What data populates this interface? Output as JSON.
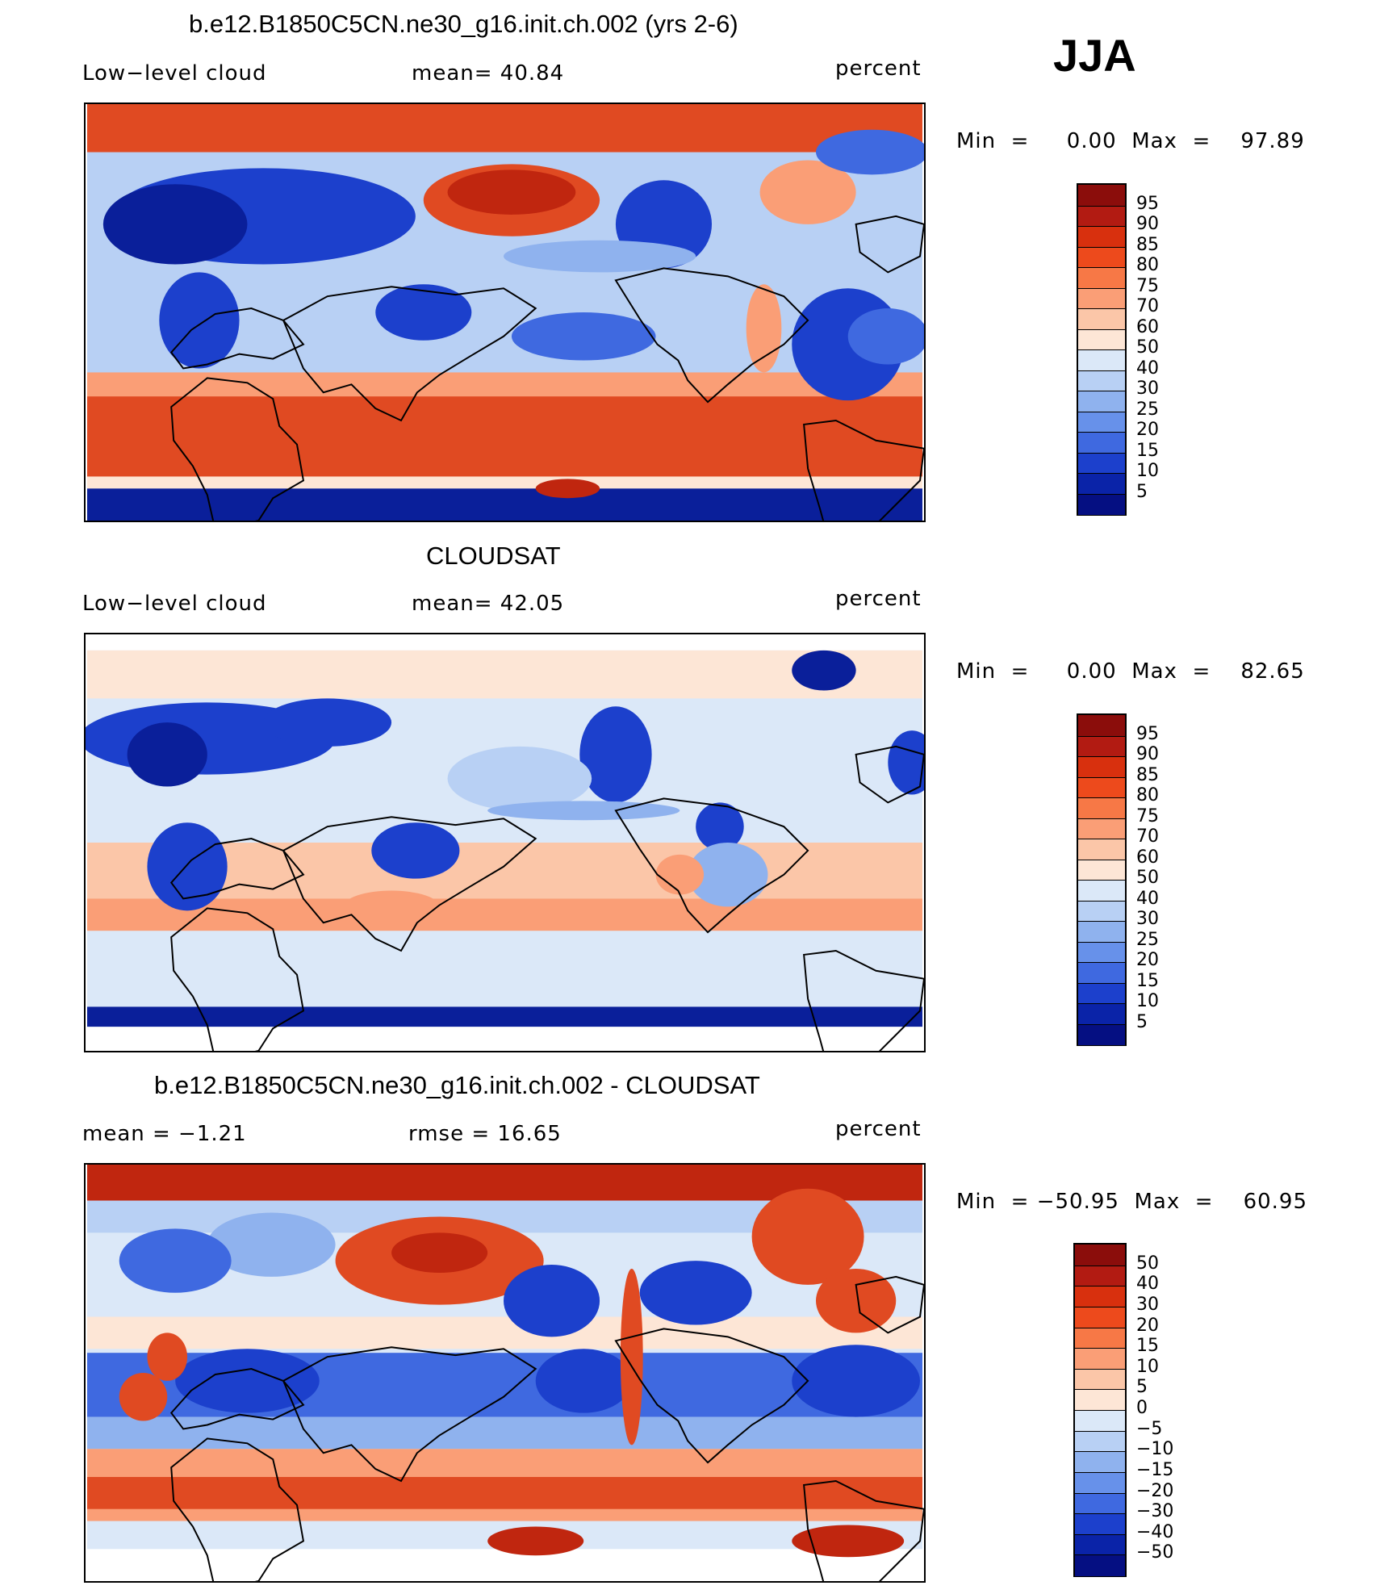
{
  "season": "JJA",
  "panels": [
    {
      "title": "b.e12.B1850C5CN.ne30_g16.init.ch.002 (yrs 2-6)",
      "left_label": "Low−level  cloud",
      "center_label": "mean=   40.84",
      "right_label": "percent",
      "minmax": "Min  =     0.00  Max  =    97.89",
      "colorbar_labels": [
        "95",
        "90",
        "85",
        "80",
        "75",
        "70",
        "60",
        "50",
        "40",
        "30",
        "25",
        "20",
        "15",
        "10",
        "5"
      ],
      "kind": "model"
    },
    {
      "title": "CLOUDSAT",
      "left_label": "Low−level  cloud",
      "center_label": "mean=   42.05",
      "right_label": "percent",
      "minmax": "Min  =     0.00  Max  =    82.65",
      "colorbar_labels": [
        "95",
        "90",
        "85",
        "80",
        "75",
        "70",
        "60",
        "50",
        "40",
        "30",
        "25",
        "20",
        "15",
        "10",
        "5"
      ],
      "kind": "obs"
    },
    {
      "title": "b.e12.B1850C5CN.ne30_g16.init.ch.002 - CLOUDSAT",
      "left_label": "mean  =    −1.21",
      "center_label": "rmse  =    16.65",
      "right_label": "percent",
      "minmax": "Min  = −50.95  Max  =    60.95",
      "colorbar_labels": [
        "50",
        "40",
        "30",
        "20",
        "15",
        "10",
        "5",
        "0",
        "−5",
        "−10",
        "−15",
        "−20",
        "−30",
        "−40",
        "−50"
      ],
      "kind": "diff"
    }
  ],
  "colorbar_colors": [
    "#8b0d0b",
    "#b21b12",
    "#d8300e",
    "#ed4a1c",
    "#f77846",
    "#fa9e76",
    "#fbc6a8",
    "#fde6d6",
    "#dbe8f8",
    "#b8d0f4",
    "#8fb2ee",
    "#6791ea",
    "#3f69e0",
    "#1c40cc",
    "#0a23a8",
    "#050f82"
  ],
  "map_palette": {
    "deep_red": "#c0260f",
    "red": "#e04a22",
    "orange": "#f77846",
    "salmon": "#fa9e76",
    "peach": "#fbc6a8",
    "cream": "#fde6d6",
    "light_blue": "#dbe8f8",
    "pale_blue": "#b8d0f4",
    "mid_blue": "#8fb2ee",
    "blue": "#3f69e0",
    "dark_blue": "#1c40cc",
    "navy": "#0a1f9a"
  }
}
